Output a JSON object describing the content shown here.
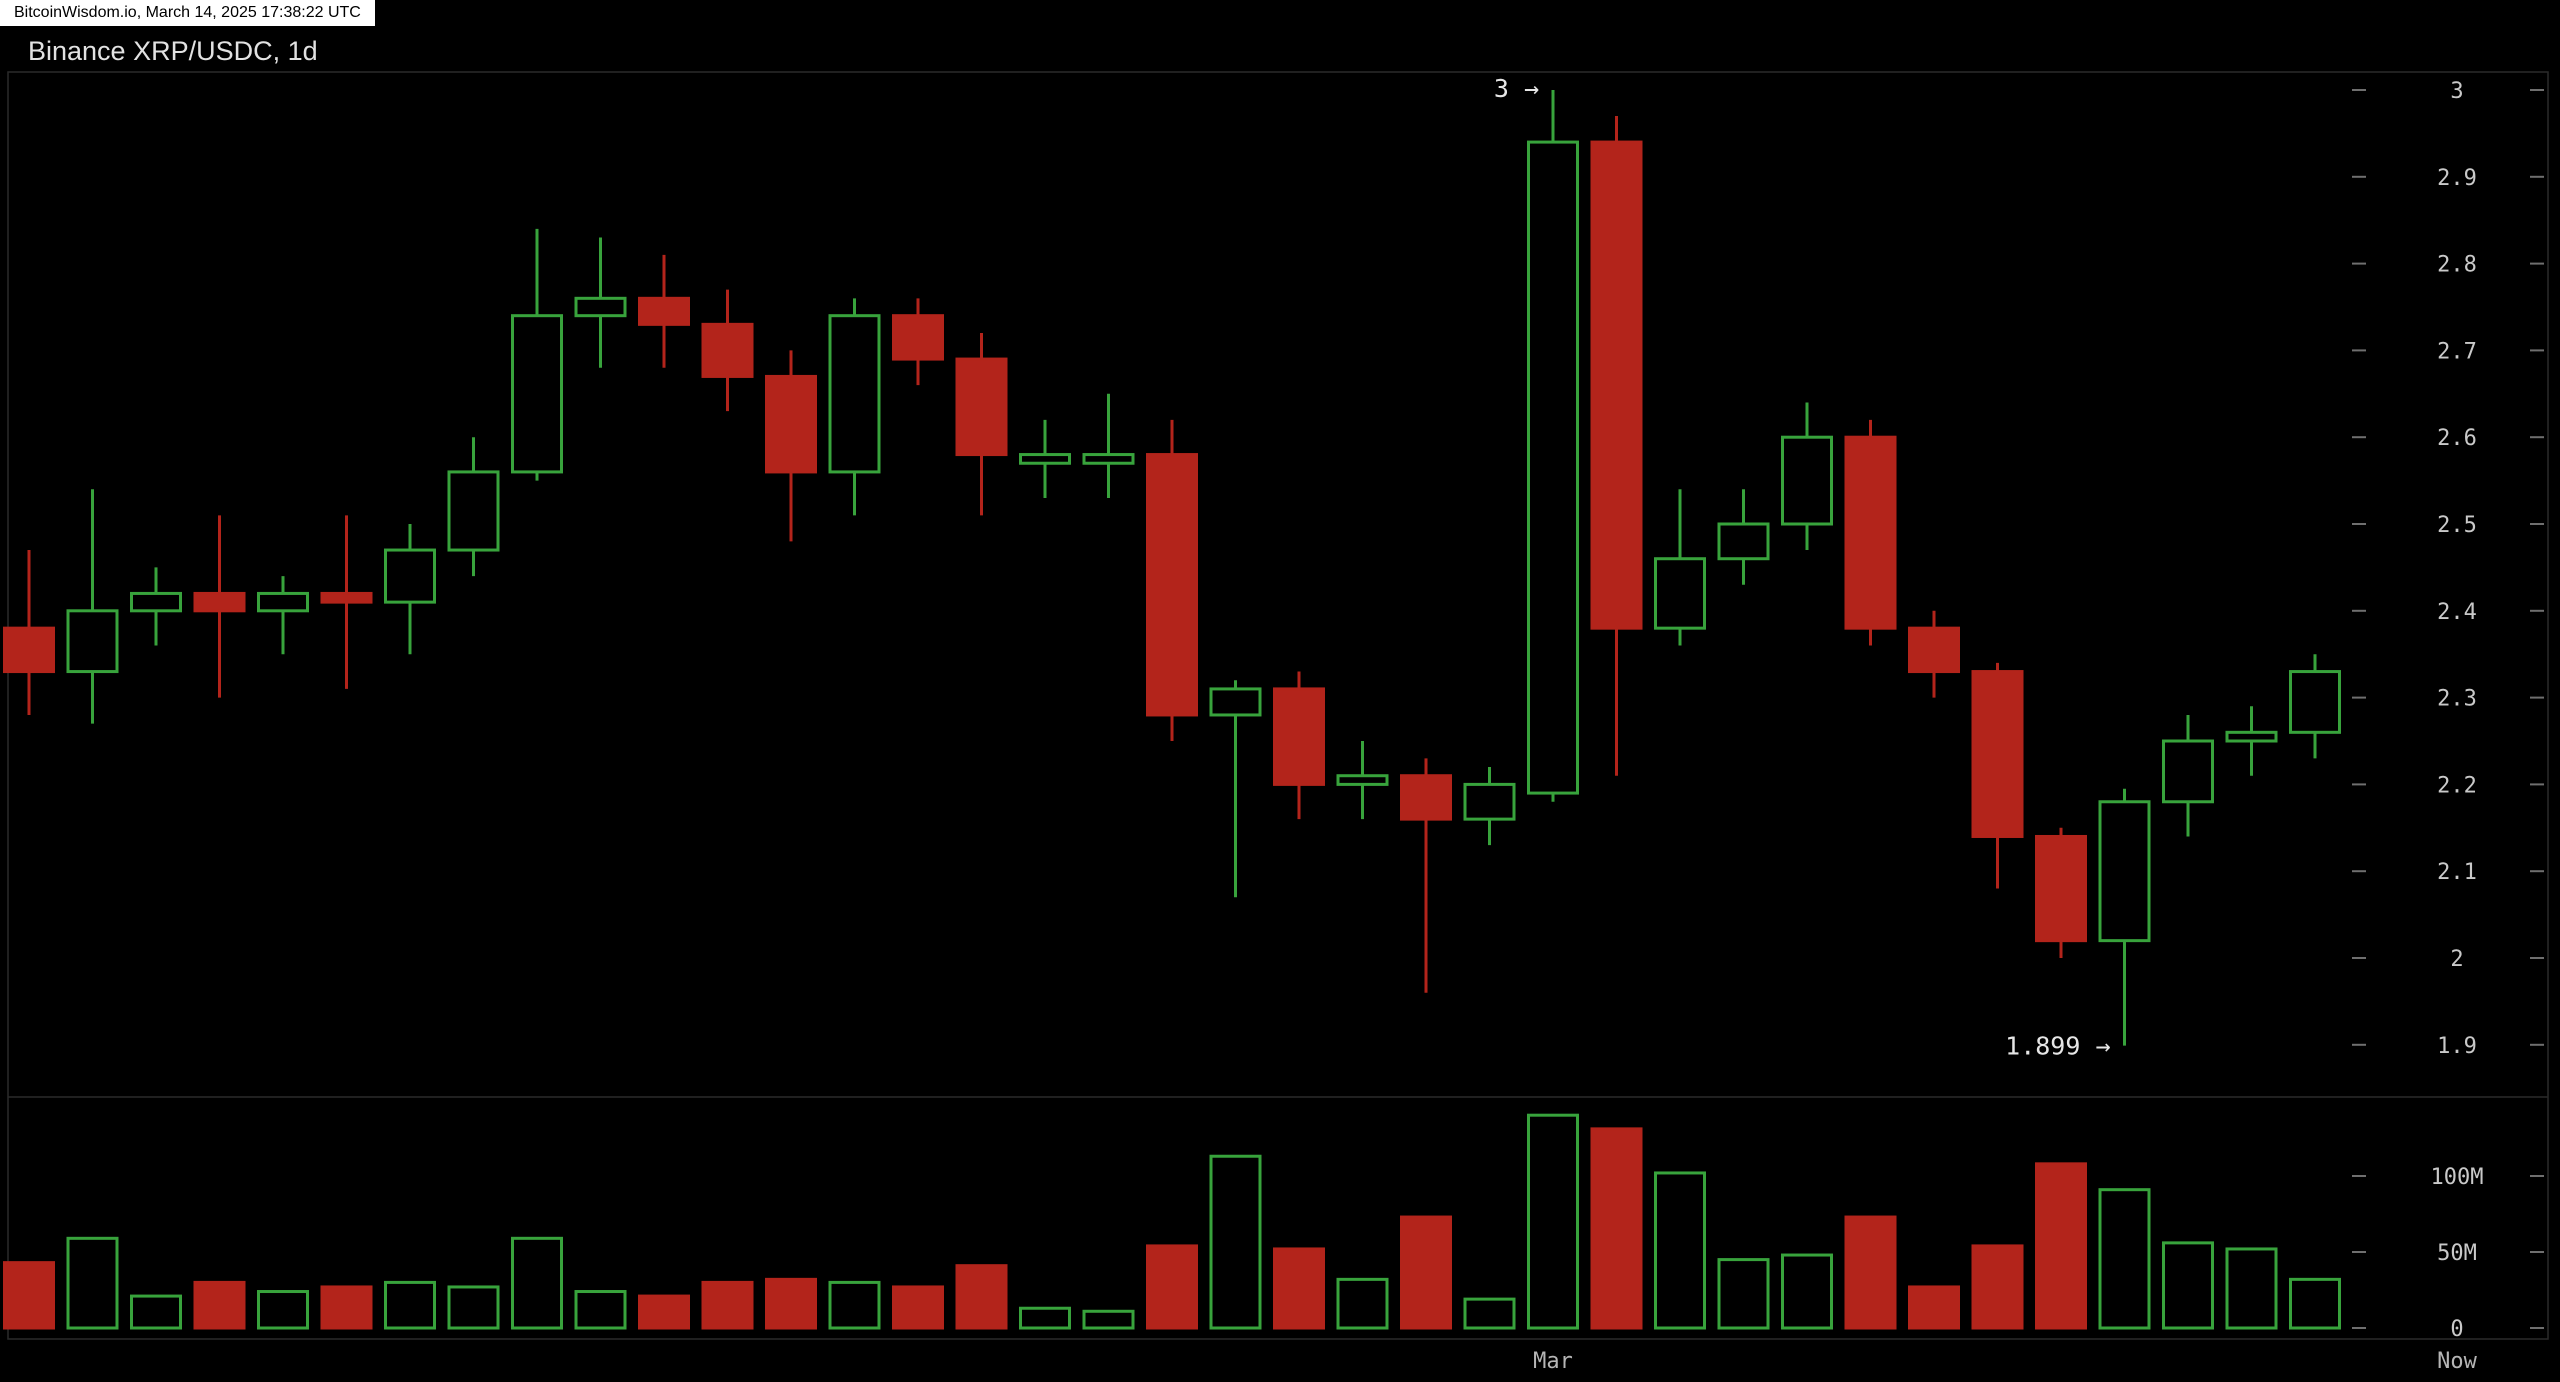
{
  "meta_bar": {
    "text": "BitcoinWisdom.io, March 14, 2025 17:38:22 UTC"
  },
  "title": "Binance XRP/USDC, 1d",
  "annotations": {
    "high_label": "3 →",
    "high_candle_index": 24,
    "low_label": "1.899 →",
    "low_candle_index": 33
  },
  "price_axis": {
    "labels": [
      "3",
      "2.9",
      "2.8",
      "2.7",
      "2.6",
      "2.5",
      "2.4",
      "2.3",
      "2.2",
      "2.1",
      "2",
      "1.9"
    ]
  },
  "volume_axis": {
    "labels": [
      {
        "text": "100M",
        "value_m": 100
      },
      {
        "text": "50M",
        "value_m": 50
      },
      {
        "text": "0",
        "value_m": 0
      }
    ]
  },
  "time_axis": {
    "labels": [
      {
        "text": "Mar",
        "candle_index": 24
      },
      {
        "text": "Now",
        "at_right": true
      }
    ]
  },
  "colors": {
    "bg": "#000000",
    "up": "#38a33c",
    "down": "#b3241b",
    "frame": "#2a2a2a",
    "tick": "#6f6f6f",
    "axis_text": "#c9c9c9",
    "annotation_text": "#e6e6e6",
    "time_text": "#b5b5b5",
    "meta_bg": "#ffffff",
    "meta_text": "#000000",
    "title_text": "#e2e2e2"
  },
  "chart_data": {
    "type": "candlestick",
    "title": "Binance XRP/USDC, 1d",
    "interval": "1d",
    "price_axis_range": [
      1.9,
      3.0
    ],
    "volume_unit": "millions",
    "legend_position": "none",
    "grid": false,
    "columns": [
      "open",
      "high",
      "low",
      "close",
      "volume_m"
    ],
    "candles": [
      [
        2.38,
        2.47,
        2.28,
        2.33,
        43
      ],
      [
        2.33,
        2.54,
        2.27,
        2.4,
        59
      ],
      [
        2.4,
        2.45,
        2.36,
        2.42,
        21
      ],
      [
        2.42,
        2.51,
        2.3,
        2.4,
        30
      ],
      [
        2.4,
        2.44,
        2.35,
        2.42,
        24
      ],
      [
        2.42,
        2.51,
        2.31,
        2.41,
        27
      ],
      [
        2.41,
        2.5,
        2.35,
        2.47,
        30
      ],
      [
        2.47,
        2.6,
        2.44,
        2.56,
        27
      ],
      [
        2.56,
        2.84,
        2.55,
        2.74,
        59
      ],
      [
        2.74,
        2.83,
        2.68,
        2.76,
        24
      ],
      [
        2.76,
        2.81,
        2.68,
        2.73,
        21
      ],
      [
        2.73,
        2.77,
        2.63,
        2.67,
        30
      ],
      [
        2.67,
        2.7,
        2.48,
        2.56,
        32
      ],
      [
        2.56,
        2.76,
        2.51,
        2.74,
        30
      ],
      [
        2.74,
        2.76,
        2.66,
        2.69,
        27
      ],
      [
        2.69,
        2.72,
        2.51,
        2.58,
        41
      ],
      [
        2.57,
        2.62,
        2.53,
        2.58,
        13
      ],
      [
        2.57,
        2.65,
        2.53,
        2.58,
        11
      ],
      [
        2.58,
        2.62,
        2.25,
        2.28,
        54
      ],
      [
        2.28,
        2.32,
        2.07,
        2.31,
        113
      ],
      [
        2.31,
        2.33,
        2.16,
        2.2,
        52
      ],
      [
        2.2,
        2.25,
        2.16,
        2.21,
        32
      ],
      [
        2.21,
        2.23,
        1.96,
        2.16,
        73
      ],
      [
        2.16,
        2.22,
        2.13,
        2.2,
        19
      ],
      [
        2.19,
        3.0,
        2.18,
        2.94,
        140
      ],
      [
        2.94,
        2.97,
        2.21,
        2.38,
        131
      ],
      [
        2.38,
        2.54,
        2.36,
        2.46,
        102
      ],
      [
        2.46,
        2.54,
        2.43,
        2.5,
        45
      ],
      [
        2.5,
        2.64,
        2.47,
        2.6,
        48
      ],
      [
        2.6,
        2.62,
        2.36,
        2.38,
        73
      ],
      [
        2.38,
        2.4,
        2.3,
        2.33,
        27
      ],
      [
        2.33,
        2.34,
        2.08,
        2.14,
        54
      ],
      [
        2.14,
        2.15,
        2.0,
        2.02,
        108
      ],
      [
        2.02,
        2.195,
        1.899,
        2.18,
        91
      ],
      [
        2.18,
        2.28,
        2.14,
        2.25,
        56
      ],
      [
        2.25,
        2.29,
        2.21,
        2.26,
        52
      ],
      [
        2.26,
        2.35,
        2.23,
        2.33,
        32
      ]
    ]
  }
}
